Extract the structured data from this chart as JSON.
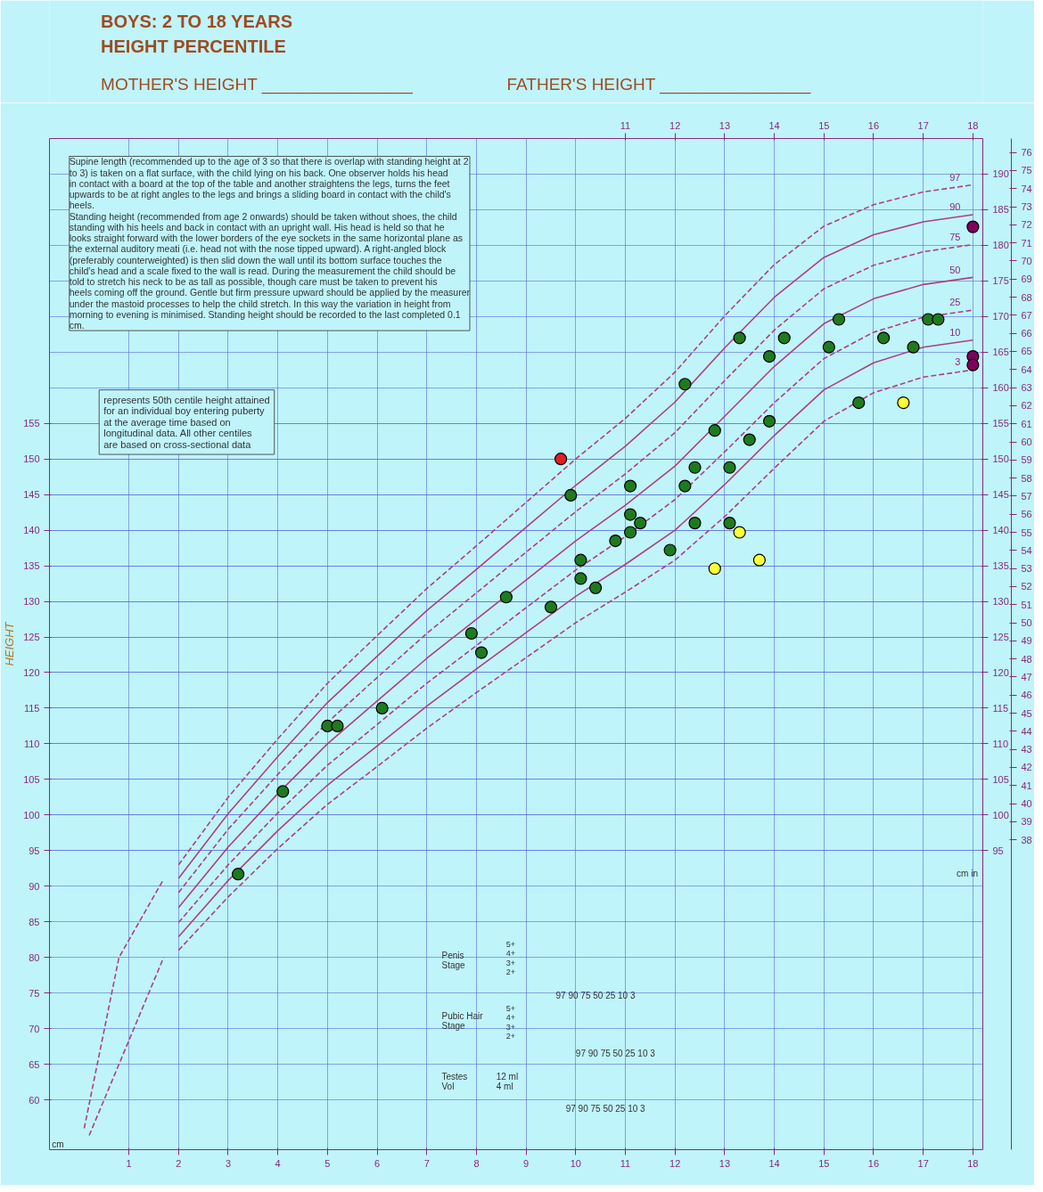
{
  "chart_data": {
    "type": "line",
    "title": "BOYS: 2 TO 18 YEARS",
    "subtitle": "HEIGHT PERCENTILE",
    "ylabel": "HEIGHT",
    "xlim": [
      -0.6,
      18.2
    ],
    "xticks": [
      1,
      2,
      3,
      4,
      5,
      6,
      7,
      8,
      9,
      10,
      11,
      12,
      13,
      14,
      15,
      16,
      17,
      18
    ],
    "x2lim": [
      -0.6,
      18.2
    ],
    "x2ticks": [
      11,
      12,
      13,
      14,
      15,
      16,
      17,
      18
    ],
    "ylim": [
      53,
      195
    ],
    "yticks": [
      60,
      65,
      70,
      75,
      80,
      85,
      90,
      95,
      100,
      105,
      110,
      115,
      120,
      125,
      130,
      135,
      140,
      145,
      150,
      155
    ],
    "y2lim": [
      53,
      195
    ],
    "y2ticks": [
      95,
      100,
      105,
      110,
      115,
      120,
      125,
      130,
      135,
      140,
      145,
      150,
      155,
      160,
      165,
      170,
      175,
      180,
      185,
      190
    ],
    "y3lim": [
      20.87,
      76.77
    ],
    "y3ticks": [
      38,
      39,
      40,
      41,
      42,
      43,
      44,
      45,
      46,
      47,
      48,
      49,
      50,
      51,
      52,
      53,
      54,
      55,
      56,
      57,
      58,
      59,
      60,
      61,
      62,
      63,
      64,
      65,
      66,
      67,
      68,
      69,
      70,
      71,
      72,
      73,
      74,
      75,
      76
    ],
    "grid": true,
    "series": [
      {
        "name": "97",
        "line_style": "dashed",
        "color": "#b0407a",
        "x": [
          2,
          3,
          4,
          5,
          6,
          7,
          8,
          9,
          10,
          11,
          12,
          13,
          14,
          15,
          16,
          17,
          18
        ],
        "values": [
          93.0,
          102.5,
          110.7,
          118.5,
          125.2,
          131.8,
          137.8,
          143.9,
          150.0,
          155.7,
          162.2,
          170.1,
          177.3,
          182.7,
          185.7,
          187.5,
          188.5
        ]
      },
      {
        "name": "90",
        "line_style": "solid",
        "color": "#b0407a",
        "x": [
          2,
          3,
          4,
          5,
          6,
          7,
          8,
          9,
          10,
          11,
          12,
          13,
          14,
          15,
          16,
          17,
          18
        ],
        "values": [
          91.1,
          100.2,
          108.2,
          115.8,
          122.3,
          128.7,
          134.5,
          140.4,
          146.3,
          151.8,
          158.0,
          165.6,
          172.7,
          178.3,
          181.5,
          183.3,
          184.3
        ]
      },
      {
        "name": "75",
        "line_style": "dashed",
        "color": "#b0407a",
        "x": [
          2,
          3,
          4,
          5,
          6,
          7,
          8,
          9,
          10,
          11,
          12,
          13,
          14,
          15,
          16,
          17,
          18
        ],
        "values": [
          89.1,
          98.0,
          105.7,
          113.0,
          119.3,
          125.5,
          131.2,
          136.9,
          142.6,
          147.9,
          153.7,
          161.0,
          168.1,
          173.9,
          177.2,
          179.1,
          180.1
        ]
      },
      {
        "name": "50",
        "line_style": "solid",
        "color": "#b0407a",
        "x": [
          2,
          3,
          4,
          5,
          6,
          7,
          8,
          9,
          10,
          11,
          12,
          13,
          14,
          15,
          16,
          17,
          18
        ],
        "values": [
          87.0,
          95.5,
          103.0,
          110.0,
          116.0,
          122.0,
          127.5,
          133.0,
          138.5,
          143.5,
          149.0,
          156.0,
          163.0,
          169.0,
          172.5,
          174.5,
          175.5
        ]
      },
      {
        "name": "25",
        "line_style": "dashed",
        "color": "#b0407a",
        "x": [
          2,
          3,
          4,
          5,
          6,
          7,
          8,
          9,
          10,
          11,
          12,
          13,
          14,
          15,
          16,
          17,
          18
        ],
        "values": [
          84.9,
          93.0,
          100.3,
          107.0,
          112.7,
          118.5,
          123.8,
          129.1,
          134.4,
          139.1,
          144.3,
          151.0,
          157.9,
          164.1,
          167.8,
          169.9,
          170.9
        ]
      },
      {
        "name": "10",
        "line_style": "solid",
        "color": "#b0407a",
        "x": [
          2,
          3,
          4,
          5,
          6,
          7,
          8,
          9,
          10,
          11,
          12,
          13,
          14,
          15,
          16,
          17,
          18
        ],
        "values": [
          82.9,
          90.8,
          97.8,
          104.2,
          109.7,
          115.3,
          120.5,
          125.6,
          130.7,
          135.2,
          140.0,
          146.4,
          153.3,
          159.7,
          163.5,
          165.7,
          166.7
        ]
      },
      {
        "name": "3",
        "line_style": "dashed",
        "color": "#b0407a",
        "x": [
          2,
          3,
          4,
          5,
          6,
          7,
          8,
          9,
          10,
          11,
          12,
          13,
          14,
          15,
          16,
          17,
          18
        ],
        "values": [
          81.0,
          88.5,
          95.3,
          101.5,
          106.8,
          112.2,
          117.2,
          122.1,
          127.0,
          131.3,
          135.8,
          141.9,
          148.7,
          155.3,
          159.3,
          161.5,
          162.5
        ]
      },
      {
        "line_style": "dashed",
        "color": "#b0407a",
        "x": [
          0.1,
          0.8,
          1.7
        ],
        "values": [
          56,
          80,
          91
        ]
      },
      {
        "line_style": "dashed",
        "color": "#b0407a",
        "x": [
          0.2,
          1.7
        ],
        "values": [
          55,
          80
        ]
      },
      {
        "type": "scatter",
        "marker": "circle",
        "color": "#1e7a1e",
        "x": [
          3.2,
          4.1,
          5.0,
          5.2,
          6.1,
          7.9,
          8.1,
          8.6,
          9.5,
          9.9,
          10.1,
          10.1,
          10.4,
          10.8,
          11.1,
          11.1,
          11.1,
          11.3,
          11.9,
          12.2,
          12.2,
          12.4,
          12.4,
          12.8,
          13.1,
          13.1,
          13.3,
          13.5,
          13.9,
          13.9,
          14.2,
          15.1,
          15.3,
          15.7,
          16.2,
          16.8,
          17.1,
          17.3
        ],
        "values": [
          91.7,
          103.3,
          112.5,
          112.5,
          115.0,
          125.5,
          122.8,
          130.6,
          129.2,
          144.9,
          135.8,
          133.2,
          131.9,
          138.5,
          146.2,
          142.2,
          139.7,
          141.0,
          137.2,
          160.5,
          146.2,
          148.8,
          141.0,
          154.0,
          148.8,
          141.0,
          167.0,
          152.7,
          164.4,
          155.3,
          167.0,
          165.7,
          169.6,
          157.9,
          167.0,
          165.7,
          169.6,
          169.6
        ]
      },
      {
        "type": "scatter",
        "marker": "circle",
        "color": "#ffff33",
        "x": [
          12.8,
          13.3,
          13.7,
          16.6
        ],
        "values": [
          134.6,
          139.7,
          135.8,
          157.9
        ]
      },
      {
        "type": "scatter",
        "marker": "circle",
        "color": "#e02020",
        "x": [
          9.7
        ],
        "values": [
          150.0
        ]
      },
      {
        "type": "scatter",
        "marker": "circle",
        "color": "#800060",
        "x": [
          18.0,
          18.0,
          18.0
        ],
        "values": [
          182.6,
          164.4,
          163.2
        ]
      }
    ],
    "annotations": [
      "MOTHER'S HEIGHT ________________",
      "FATHER'S HEIGHT ________________",
      "Supine length (recommended up to the age of 3 so that there is overlap with standing height at 2 to 3) is taken on a flat surface, with the child lying on his back. One observer holds his head in contact with a board at the top of the table and another straightens the legs, turns the feet upwards to be at right angles to the legs and brings a sliding board in contact with the child's heels.",
      "Standing height (recommended from age 2 onwards) should be taken without shoes, the child standing with his heels and back in contact with an upright wall. His head is held so that he looks straight forward with the lower borders of the eye sockets in the same horizontal plane as the external auditory meati (i.e. head not with the nose tipped upward). A right-angled block (preferably counterweighted) is then slid down the wall until its bottom surface touches the child's head and a scale fixed to the wall is read. During the measurement the child should be told to stretch his neck to be as tall as possible, though care must be taken to prevent his heels coming off the ground. Gentle but firm pressure upward should be applied by the measurer under the mastoid processes to help the child stretch. In this way the variation in height from morning to evening is minimised. Standing height should be recorded to the last completed 0.1 cm.",
      "represents 50th centile height attained for an individual boy entering puberty at the average time based on longitudinal data. All other centiles are based on cross-sectional data",
      "Penis\nStage",
      "5+\n4+\n3+\n2+",
      "97    90    75    50    25    10    3",
      "Pubic Hair\nStage",
      "5+\n4+\n3+\n2+",
      "97    90    75    50    25    10    3",
      "Testes\nVol",
      "12 ml\n4 ml",
      "97    90    75    50    25    10    3",
      "cm",
      "cm  in"
    ]
  }
}
